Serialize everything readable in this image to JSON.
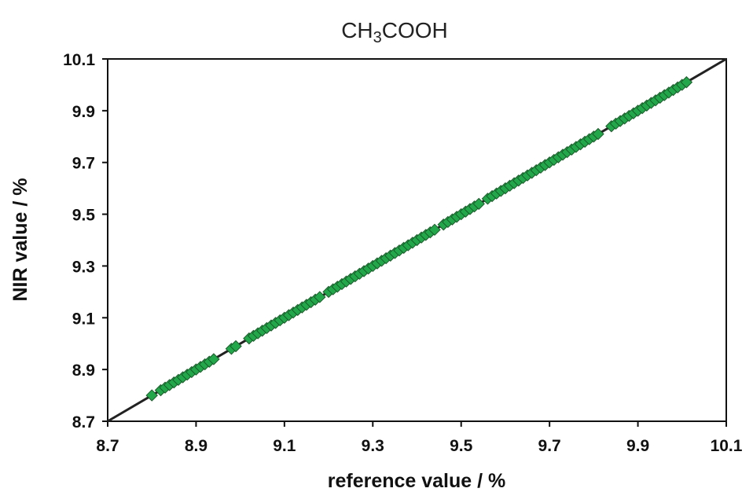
{
  "chart_data": {
    "type": "scatter",
    "title_main": "CH",
    "title_sub": "3",
    "title_rest": "COOH",
    "xlabel": "reference value / %",
    "ylabel": "NIR value / %",
    "xlim": [
      8.7,
      10.1
    ],
    "ylim": [
      8.7,
      10.1
    ],
    "x_ticks": [
      "8.7",
      "8.9",
      "9.1",
      "9.3",
      "9.5",
      "9.7",
      "9.9",
      "10.1"
    ],
    "y_ticks": [
      "8.7",
      "8.9",
      "9.1",
      "9.3",
      "9.5",
      "9.7",
      "9.9",
      "10.1"
    ],
    "grid": false,
    "legend": "none",
    "reference_line": {
      "from": [
        8.7,
        8.7
      ],
      "to": [
        10.1,
        10.1
      ],
      "color": "#222222"
    },
    "marker": {
      "shape": "diamond",
      "fill": "#22a84a",
      "stroke": "#1a5c2a"
    },
    "series": [
      {
        "points": [
          [
            8.8,
            8.8
          ],
          [
            8.82,
            8.82
          ],
          [
            8.83,
            8.83
          ],
          [
            8.84,
            8.84
          ],
          [
            8.85,
            8.85
          ],
          [
            8.86,
            8.86
          ],
          [
            8.87,
            8.87
          ],
          [
            8.88,
            8.88
          ],
          [
            8.89,
            8.89
          ],
          [
            8.9,
            8.9
          ],
          [
            8.91,
            8.91
          ],
          [
            8.92,
            8.92
          ],
          [
            8.93,
            8.93
          ],
          [
            8.94,
            8.94
          ],
          [
            8.98,
            8.98
          ],
          [
            8.99,
            8.99
          ],
          [
            9.02,
            9.02
          ],
          [
            9.03,
            9.03
          ],
          [
            9.04,
            9.04
          ],
          [
            9.05,
            9.05
          ],
          [
            9.06,
            9.06
          ],
          [
            9.07,
            9.07
          ],
          [
            9.08,
            9.08
          ],
          [
            9.09,
            9.09
          ],
          [
            9.1,
            9.1
          ],
          [
            9.11,
            9.11
          ],
          [
            9.12,
            9.12
          ],
          [
            9.13,
            9.13
          ],
          [
            9.14,
            9.14
          ],
          [
            9.15,
            9.15
          ],
          [
            9.16,
            9.16
          ],
          [
            9.17,
            9.17
          ],
          [
            9.18,
            9.18
          ],
          [
            9.2,
            9.2
          ],
          [
            9.21,
            9.21
          ],
          [
            9.22,
            9.22
          ],
          [
            9.23,
            9.23
          ],
          [
            9.24,
            9.24
          ],
          [
            9.25,
            9.25
          ],
          [
            9.26,
            9.26
          ],
          [
            9.27,
            9.27
          ],
          [
            9.28,
            9.28
          ],
          [
            9.29,
            9.29
          ],
          [
            9.3,
            9.3
          ],
          [
            9.31,
            9.31
          ],
          [
            9.32,
            9.32
          ],
          [
            9.33,
            9.33
          ],
          [
            9.34,
            9.34
          ],
          [
            9.35,
            9.35
          ],
          [
            9.36,
            9.36
          ],
          [
            9.37,
            9.37
          ],
          [
            9.38,
            9.38
          ],
          [
            9.39,
            9.39
          ],
          [
            9.4,
            9.4
          ],
          [
            9.41,
            9.41
          ],
          [
            9.42,
            9.42
          ],
          [
            9.43,
            9.43
          ],
          [
            9.44,
            9.44
          ],
          [
            9.46,
            9.46
          ],
          [
            9.47,
            9.47
          ],
          [
            9.48,
            9.48
          ],
          [
            9.49,
            9.49
          ],
          [
            9.5,
            9.5
          ],
          [
            9.51,
            9.51
          ],
          [
            9.52,
            9.52
          ],
          [
            9.53,
            9.53
          ],
          [
            9.54,
            9.54
          ],
          [
            9.56,
            9.56
          ],
          [
            9.57,
            9.57
          ],
          [
            9.58,
            9.58
          ],
          [
            9.59,
            9.59
          ],
          [
            9.6,
            9.6
          ],
          [
            9.61,
            9.61
          ],
          [
            9.62,
            9.62
          ],
          [
            9.63,
            9.63
          ],
          [
            9.64,
            9.64
          ],
          [
            9.65,
            9.65
          ],
          [
            9.66,
            9.66
          ],
          [
            9.67,
            9.67
          ],
          [
            9.68,
            9.68
          ],
          [
            9.69,
            9.69
          ],
          [
            9.7,
            9.7
          ],
          [
            9.71,
            9.71
          ],
          [
            9.72,
            9.72
          ],
          [
            9.73,
            9.73
          ],
          [
            9.74,
            9.74
          ],
          [
            9.75,
            9.75
          ],
          [
            9.76,
            9.76
          ],
          [
            9.77,
            9.77
          ],
          [
            9.78,
            9.78
          ],
          [
            9.79,
            9.79
          ],
          [
            9.8,
            9.8
          ],
          [
            9.81,
            9.81
          ],
          [
            9.84,
            9.84
          ],
          [
            9.85,
            9.85
          ],
          [
            9.86,
            9.86
          ],
          [
            9.87,
            9.87
          ],
          [
            9.88,
            9.88
          ],
          [
            9.89,
            9.89
          ],
          [
            9.9,
            9.9
          ],
          [
            9.91,
            9.91
          ],
          [
            9.92,
            9.92
          ],
          [
            9.93,
            9.93
          ],
          [
            9.94,
            9.94
          ],
          [
            9.95,
            9.95
          ],
          [
            9.96,
            9.96
          ],
          [
            9.97,
            9.97
          ],
          [
            9.98,
            9.98
          ],
          [
            9.99,
            9.99
          ],
          [
            10.0,
            10.0
          ],
          [
            10.01,
            10.01
          ]
        ]
      }
    ]
  }
}
